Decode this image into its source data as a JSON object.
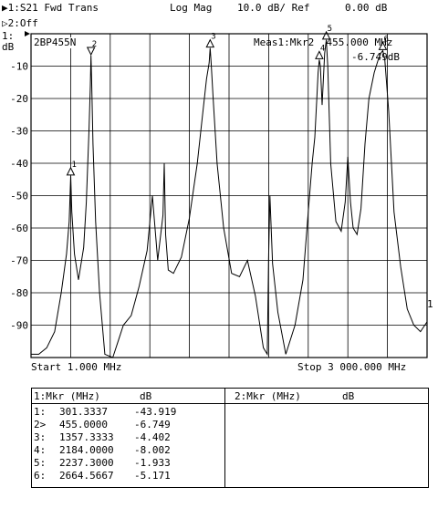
{
  "header": {
    "channel1": "▶1:S21 Fwd Trans",
    "format": "Log Mag",
    "scale": "10.0 dB/ Ref",
    "ref": "0.00 dB",
    "channel2": "▷2:Off"
  },
  "plot": {
    "channel_tag": "1:",
    "unit": "dB",
    "trace_label": "2BP455N",
    "meas_line1": "Meas1:Mkr2  455.000 MHz",
    "meas_line2": "-6.749dB",
    "end_marker": "1"
  },
  "footer": {
    "start": "Start 1.000 MHz",
    "stop": "Stop 3 000.000 MHz"
  },
  "table": {
    "left_header": {
      "col1": "1:Mkr (MHz)",
      "col2": "dB"
    },
    "right_header": {
      "col1": "2:Mkr (MHz)",
      "col2": "dB"
    },
    "rows": [
      {
        "id": "1:",
        "freq": "301.3337",
        "db": "-43.919"
      },
      {
        "id": "2>",
        "freq": "455.0000",
        "db": "-6.749"
      },
      {
        "id": "3:",
        "freq": "1357.3333",
        "db": "-4.402"
      },
      {
        "id": "4:",
        "freq": "2184.0000",
        "db": "-8.002"
      },
      {
        "id": "5:",
        "freq": "2237.3000",
        "db": "-1.933"
      },
      {
        "id": "6:",
        "freq": "2664.5667",
        "db": "-5.171"
      }
    ]
  },
  "chart_data": {
    "type": "line",
    "title": "S21 Fwd Trans",
    "xlabel": "",
    "ylabel": "dB",
    "xlim": [
      1,
      3000
    ],
    "ylim": [
      -100,
      0
    ],
    "grid": true,
    "y_ticks": [
      "-10",
      "-20",
      "-30",
      "-40",
      "-50",
      "-60",
      "-70",
      "-80",
      "-90"
    ],
    "series": [
      {
        "name": "S21 Fwd Trans",
        "x": [
          1,
          60,
          120,
          180,
          230,
          270,
          290,
          301.3,
          310,
          330,
          360,
          400,
          420,
          440,
          450,
          455,
          460,
          470,
          490,
          520,
          560,
          620,
          660,
          700,
          760,
          820,
          880,
          920,
          960,
          1000,
          1010,
          1020,
          1040,
          1080,
          1140,
          1200,
          1260,
          1300,
          1330,
          1350,
          1357.3,
          1365,
          1380,
          1410,
          1460,
          1520,
          1580,
          1640,
          1700,
          1760,
          1790,
          1800,
          1810,
          1830,
          1870,
          1930,
          2000,
          2060,
          2100,
          2130,
          2150,
          2165,
          2175,
          2184,
          2192,
          2205,
          2215,
          2225,
          2237.3,
          2248,
          2270,
          2310,
          2350,
          2380,
          2400,
          2420,
          2440,
          2470,
          2500,
          2530,
          2560,
          2600,
          2630,
          2650,
          2664.6,
          2680,
          2710,
          2750,
          2800,
          2850,
          2900,
          2950,
          3000
        ],
        "values": [
          -99,
          -99,
          -97,
          -92,
          -80,
          -68,
          -58,
          -43.9,
          -55,
          -68,
          -76,
          -66,
          -52,
          -30,
          -16,
          -6.7,
          -14,
          -34,
          -58,
          -80,
          -99,
          -100,
          -95,
          -90,
          -87,
          -78,
          -67,
          -50,
          -70,
          -56,
          -40,
          -62,
          -73,
          -74,
          -69,
          -57,
          -40,
          -25,
          -14,
          -9,
          -4.4,
          -9,
          -20,
          -40,
          -60,
          -74,
          -75,
          -70,
          -81,
          -97,
          -99,
          -70,
          -50,
          -71,
          -86,
          -99,
          -90,
          -76,
          -55,
          -40,
          -32,
          -20,
          -12,
          -8.0,
          -10,
          -22,
          -14,
          -6,
          -1.9,
          -10,
          -40,
          -58,
          -61,
          -52,
          -38,
          -52,
          -60,
          -62,
          -54,
          -34,
          -20,
          -12,
          -8,
          -6,
          -5.2,
          -8,
          -24,
          -55,
          -72,
          -85,
          -90,
          -92,
          -89
        ]
      }
    ],
    "markers": [
      {
        "id": "1",
        "x": 301.3337,
        "y": -43.919
      },
      {
        "id": "2",
        "x": 455.0,
        "y": -6.749,
        "active": true
      },
      {
        "id": "3",
        "x": 1357.3333,
        "y": -4.402
      },
      {
        "id": "4",
        "x": 2184.0,
        "y": -8.002
      },
      {
        "id": "5",
        "x": 2237.3,
        "y": -1.933
      },
      {
        "id": "6",
        "x": 2664.5667,
        "y": -5.171
      }
    ]
  }
}
